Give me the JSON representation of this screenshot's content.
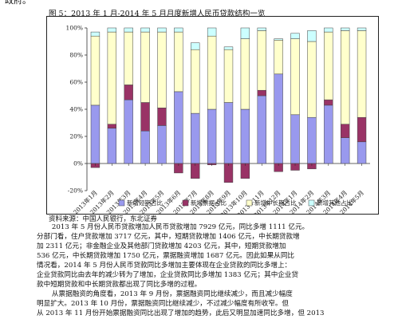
{
  "page": {
    "top_fragment": "政府。",
    "figure_caption": "图 5：2013 年 1 月-2014 年 5 月月度新增人民币贷款结构一览",
    "source": "资料来源：中国人民银行，东北证券",
    "body_lines": [
      "2013 年 5 月份人民币贷款增加人民币贷款增加 7929 亿元，同比多增 1111 亿元。",
      "分部门看，住户贷款增加 3717 亿元，其中，短期贷款增加 1406 亿元，中长期贷款增",
      "加 2311 亿元；非金融企业及其他部门贷款增加 4203 亿元，其中，短期贷款增加",
      "536 亿元，中长期贷款增加 1750 亿元，票据融资增加 1687 亿元。因此如果从同比",
      "情况看，2014 年 5 月份人民币贷款同比多增加主要体现在企业贷款的同比多增上：",
      "企业贷款同比由去年的减少转为了增加，企业贷款同比多增加 1383 亿元；其中企业贷",
      "款中短期贷款和中长期贷款都出现了同比多增的过程。",
      "从票据融资的角度看，2013 年 9 月份，票据融资同比继续减少，而且减少幅度",
      "明显扩大。2013 年 10 月份，票据融资同比继续减少，不过减少幅度有所收窄。但",
      "从 2013 年 11 月份开始票据融资同比出现了增加的趋势，此后又明显加速同比多增，但 2013"
    ]
  },
  "chart_data": {
    "type": "bar",
    "stacked": true,
    "percent_stacked": true,
    "categories": [
      "2013年1月",
      "2013年2月",
      "2013年3月",
      "2013年4月",
      "2013年5月",
      "2013年6月",
      "2013年7月",
      "2013年8月",
      "2013年9月",
      "2013年10月",
      "2013年11月",
      "2013年12月",
      "2014年1月",
      "2014年2月",
      "2014年3月",
      "2014年4月",
      "2014年5月"
    ],
    "series": [
      {
        "name": "新增短期占比",
        "color": "#9999ee",
        "values": [
          43,
          26,
          47,
          24,
          28,
          53,
          37,
          40,
          45,
          40,
          50,
          66,
          36,
          34,
          43,
          19,
          16
        ]
      },
      {
        "name": "新增票据占比",
        "color": "#993366",
        "values": [
          -3,
          3,
          11,
          21,
          13,
          -7,
          -11,
          -1,
          -14,
          -11,
          4,
          -6,
          -5,
          -4,
          4,
          10,
          18
        ]
      },
      {
        "name": "新增中长期占比",
        "color": "#ffffcc",
        "values": [
          51,
          68,
          39,
          52,
          56,
          44,
          47,
          54,
          39,
          52,
          44,
          25,
          56,
          56,
          50,
          69,
          64
        ]
      },
      {
        "name": "新增其他占比",
        "color": "#ccffff",
        "values": [
          3,
          3,
          3,
          3,
          3,
          3,
          5,
          6,
          2,
          8,
          2,
          1,
          4,
          8,
          3,
          2,
          2
        ]
      }
    ],
    "ylim": [
      -20,
      100
    ],
    "yticks": [
      "-20%",
      "0%",
      "20%",
      "40%",
      "60%",
      "80%",
      "100%"
    ],
    "xlabel": "",
    "ylabel": "",
    "legend_position": "bottom",
    "grid": false
  }
}
